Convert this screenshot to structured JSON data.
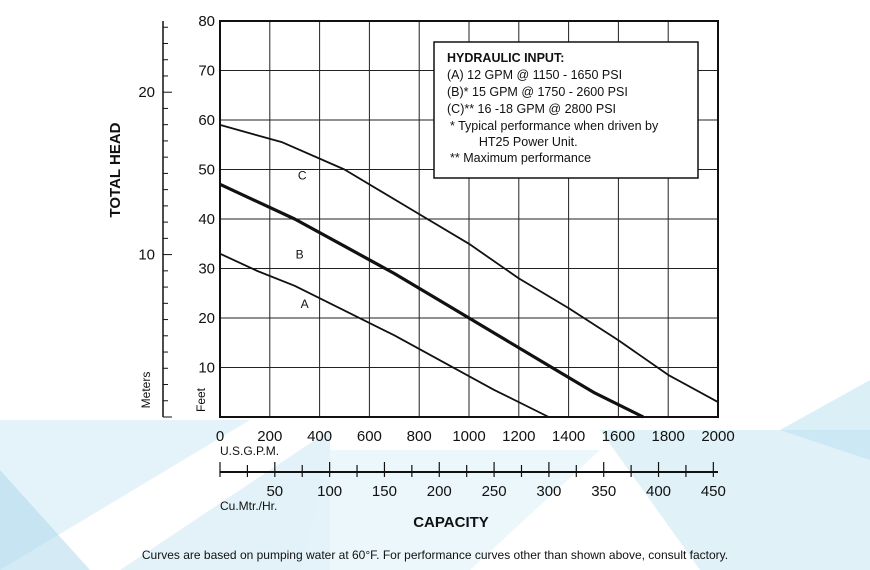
{
  "chart_data": {
    "type": "line",
    "xlim": [
      0,
      2000
    ],
    "ylim": [
      0,
      80
    ],
    "grid": true,
    "x_ticks": [
      "0",
      "200",
      "400",
      "600",
      "800",
      "1000",
      "1200",
      "1400",
      "1600",
      "1800",
      "2000"
    ],
    "y_ticks_feet": [
      "10",
      "20",
      "30",
      "40",
      "50",
      "60",
      "70",
      "80"
    ],
    "y_ticks_meters": [
      "10",
      "20"
    ],
    "x2_ticks": [
      "50",
      "100",
      "150",
      "200",
      "250",
      "300",
      "350",
      "400",
      "450"
    ],
    "ylabel": "TOTAL HEAD",
    "ylabel_meters_unit": "Meters",
    "ylabel_feet_unit": "Feet",
    "xlabel": "CAPACITY",
    "x_unit": "U.S.G.P.M.",
    "x2_unit": "Cu.Mtr./Hr.",
    "series": [
      {
        "name": "A",
        "x": [
          0,
          150,
          300,
          500,
          700,
          900,
          1100,
          1320
        ],
        "y": [
          33,
          29.5,
          26.5,
          21.5,
          16.5,
          11,
          5.5,
          0
        ]
      },
      {
        "name": "B",
        "x": [
          0,
          150,
          300,
          500,
          700,
          900,
          1100,
          1300,
          1500,
          1700
        ],
        "y": [
          47,
          43.5,
          40,
          34.5,
          29,
          23,
          17,
          11,
          5,
          0
        ]
      },
      {
        "name": "C",
        "x": [
          0,
          250,
          500,
          800,
          1000,
          1200,
          1400,
          1600,
          1800,
          2000
        ],
        "y": [
          59,
          55.5,
          50,
          41,
          35,
          28,
          22,
          15.5,
          8.5,
          3
        ]
      }
    ],
    "legend": {
      "placement": "top-right",
      "title": "HYDRAULIC INPUT:",
      "lines": [
        "(A) 12 GPM @ 1150 - 1650 PSI",
        "(B)* 15 GPM @ 1750 - 2600 PSI",
        "(C)** 16 -18 GPM @ 2800 PSI",
        "*  Typical performance when driven by",
        "    HT25 Power Unit.",
        "** Maximum performance"
      ]
    }
  },
  "footnote": "Curves are based on pumping water at 60°F. For performance curves other than shown above, consult factory."
}
